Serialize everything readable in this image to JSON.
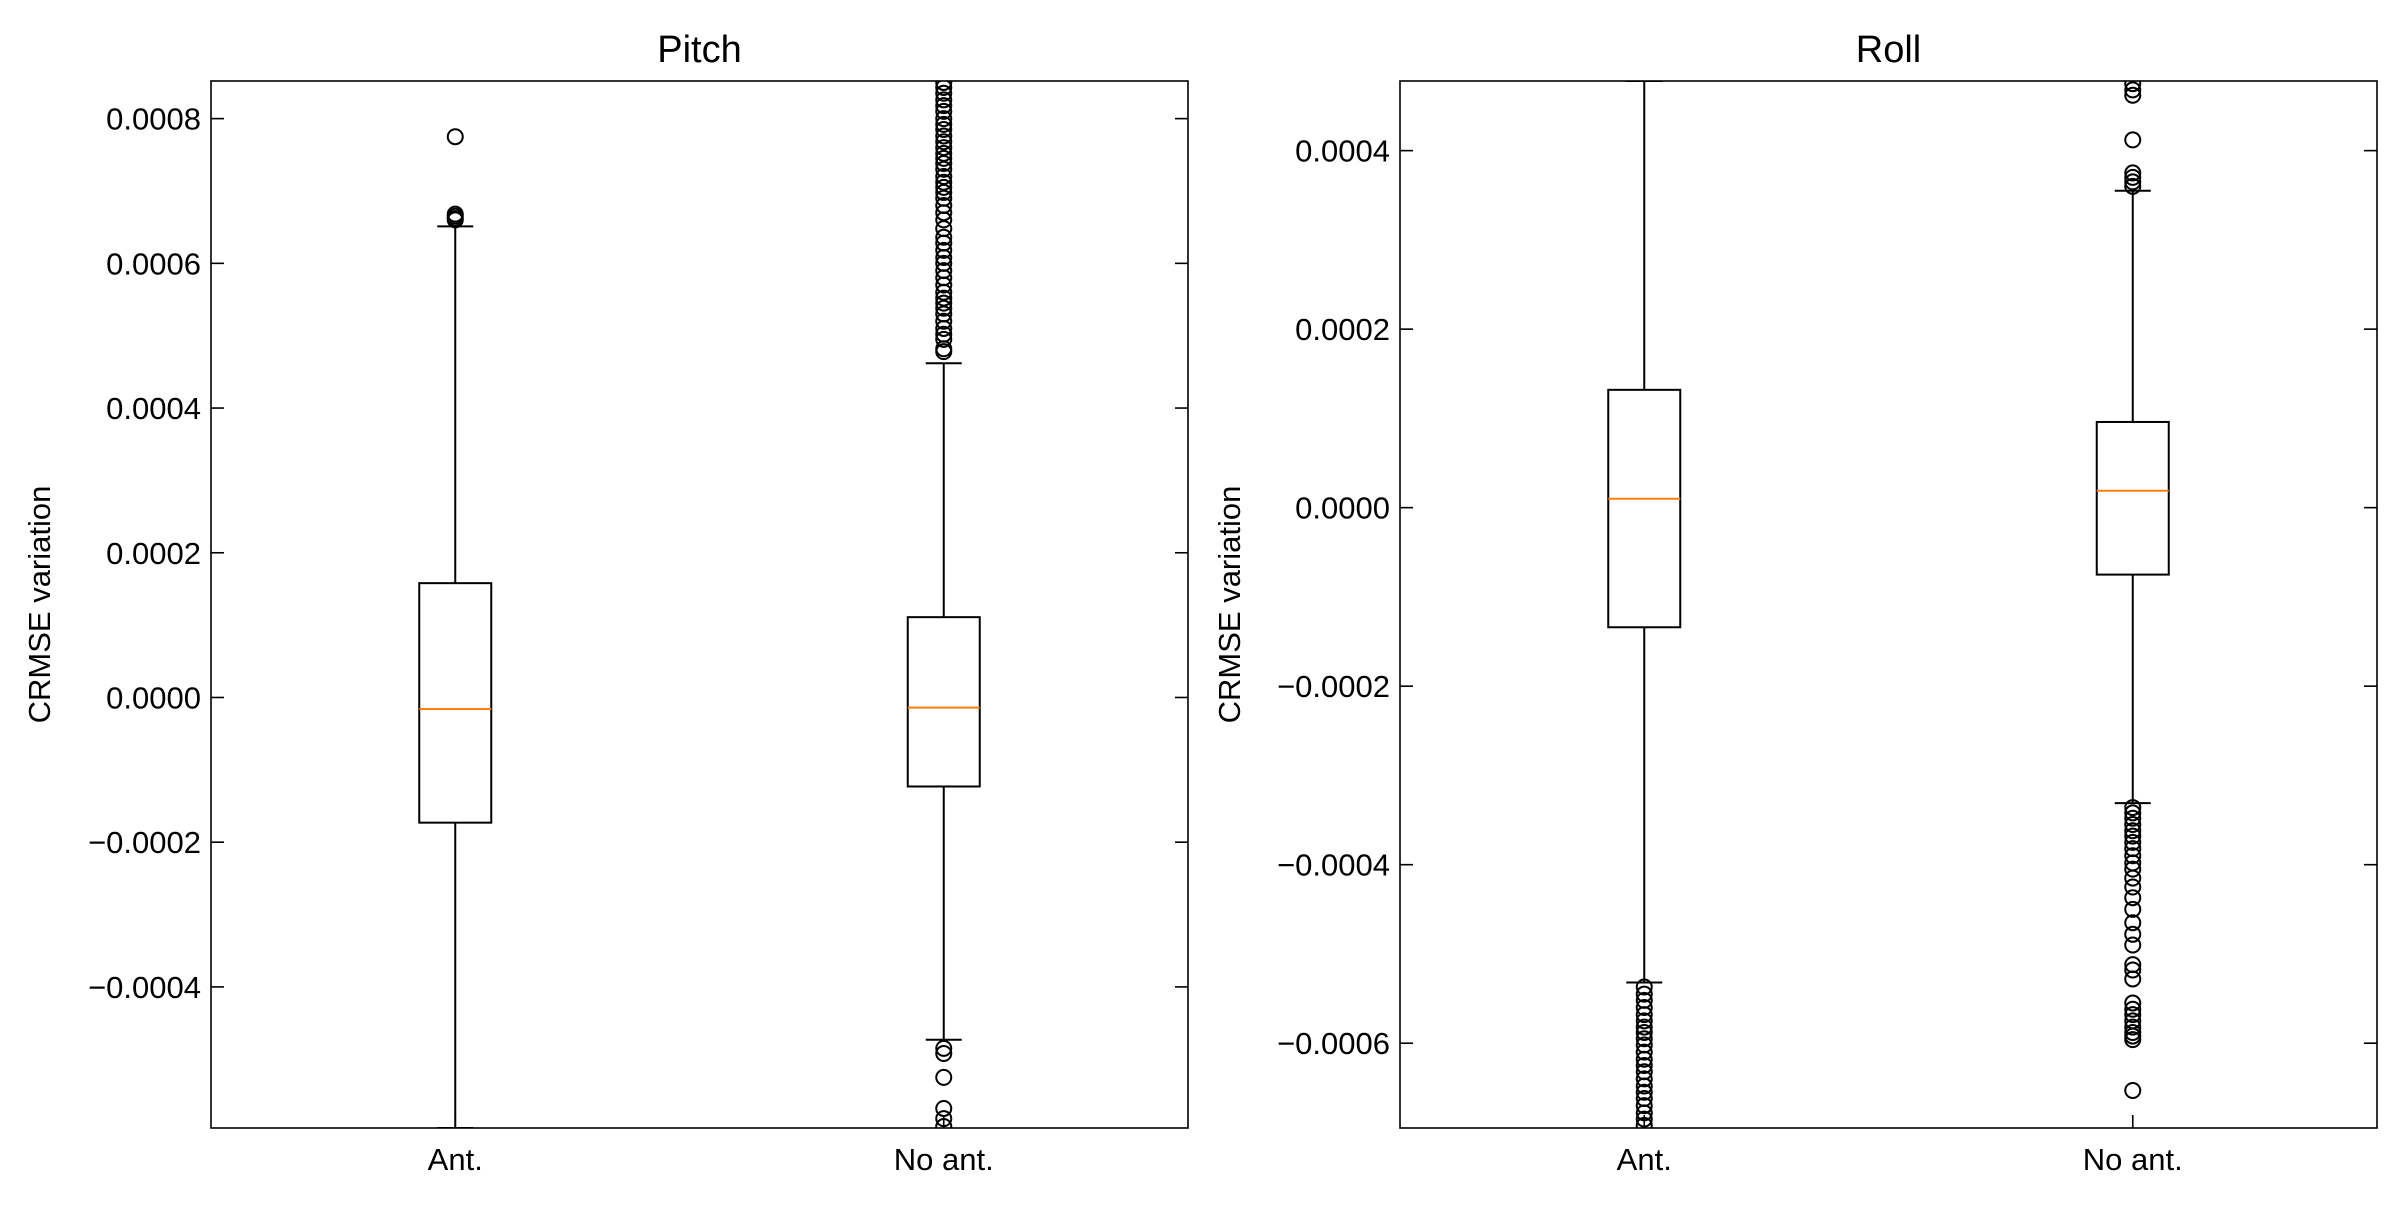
{
  "chart_data": [
    {
      "type": "box",
      "title": "Pitch",
      "xlabel": "",
      "ylabel": "CRMSE variation",
      "ylim": [
        -0.000595,
        0.000852
      ],
      "yticks": [
        -0.0004,
        -0.0002,
        0.0,
        0.0002,
        0.0004,
        0.0006,
        0.0008
      ],
      "ytick_labels": [
        "−0.0004",
        "−0.0002",
        "0.0000",
        "0.0002",
        "0.0004",
        "0.0006",
        "0.0008"
      ],
      "grid": false,
      "categories": [
        "Ant.",
        "No ant."
      ],
      "boxes": [
        {
          "label": "Ant.",
          "median": -1.6e-05,
          "q1": -0.000173,
          "q3": 0.000158,
          "whisker_low": -0.000595,
          "whisker_high": 0.000651,
          "outliers": [
            0.000775,
            0.000668,
            0.000665,
            0.000662,
            0.00066
          ]
        },
        {
          "label": "No ant.",
          "median": -1.4e-05,
          "q1": -0.000123,
          "q3": 0.000111,
          "whisker_low": -0.000473,
          "whisker_high": 0.000462,
          "outliers": [
            0.00085,
            0.000843,
            0.000835,
            0.000826,
            0.000818,
            0.00081,
            0.0008,
            0.000792,
            0.000785,
            0.000776,
            0.000768,
            0.00076,
            0.000752,
            0.000745,
            0.000738,
            0.00073,
            0.00072,
            0.000712,
            0.000705,
            0.000698,
            0.00069,
            0.00068,
            0.00067,
            0.00066,
            0.000648,
            0.000636,
            0.000628,
            0.000618,
            0.000608,
            0.0006,
            0.00059,
            0.00058,
            0.00057,
            0.00056,
            0.000552,
            0.000545,
            0.000538,
            0.00053,
            0.00052,
            0.00051,
            0.000502,
            0.000495,
            0.000482,
            0.000478,
            -0.000485,
            -0.000492,
            -0.000525,
            -0.000568,
            -0.000582,
            -0.000593
          ]
        }
      ]
    },
    {
      "type": "box",
      "title": "Roll",
      "xlabel": "",
      "ylabel": "CRMSE variation",
      "ylim": [
        -0.000695,
        0.000478
      ],
      "yticks": [
        -0.0006,
        -0.0004,
        -0.0002,
        0.0,
        0.0002,
        0.0004
      ],
      "ytick_labels": [
        "−0.0006",
        "−0.0004",
        "−0.0002",
        "0.0000",
        "0.0002",
        "0.0004"
      ],
      "grid": false,
      "categories": [
        "Ant.",
        "No ant."
      ],
      "boxes": [
        {
          "label": "Ant.",
          "median": 1e-05,
          "q1": -0.000134,
          "q3": 0.000132,
          "whisker_low": -0.000532,
          "whisker_high": 0.000478,
          "outliers": [
            -0.000537,
            -0.000545,
            -0.000552,
            -0.00056,
            -0.000568,
            -0.000575,
            -0.000582,
            -0.000588,
            -0.000595,
            -0.000602,
            -0.00061,
            -0.000618,
            -0.000625,
            -0.000632,
            -0.00064,
            -0.000648,
            -0.000655,
            -0.000662,
            -0.00067,
            -0.000678,
            -0.000685,
            -0.000692
          ]
        },
        {
          "label": "No ant.",
          "median": 1.9e-05,
          "q1": -7.5e-05,
          "q3": 9.6e-05,
          "whisker_low": -0.000331,
          "whisker_high": 0.000355,
          "outliers": [
            0.000475,
            0.000468,
            0.000462,
            0.000412,
            0.000375,
            0.00037,
            0.000365,
            0.00036,
            -0.000336,
            -0.000342,
            -0.000348,
            -0.000355,
            -0.000362,
            -0.000368,
            -0.000375,
            -0.000382,
            -0.00039,
            -0.000398,
            -0.000405,
            -0.000415,
            -0.000425,
            -0.000437,
            -0.00045,
            -0.000465,
            -0.000478,
            -0.00049,
            -0.000512,
            -0.000518,
            -0.000528,
            -0.000555,
            -0.000562,
            -0.000568,
            -0.000575,
            -0.000582,
            -0.000588,
            -0.000592,
            -0.000596,
            -0.000653
          ]
        }
      ]
    }
  ]
}
